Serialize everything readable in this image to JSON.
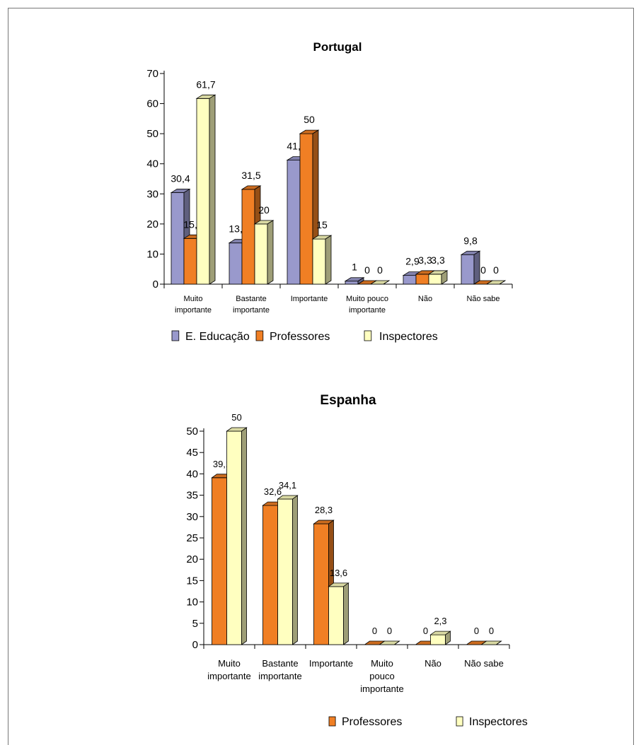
{
  "chart_data": [
    {
      "type": "bar",
      "title": "Portugal",
      "categories": [
        [
          "Muito",
          "importante"
        ],
        [
          "Bastante",
          "importante"
        ],
        [
          "Importante"
        ],
        [
          "Muito pouco",
          "importante"
        ],
        [
          "Não"
        ],
        [
          "Não sabe"
        ]
      ],
      "ylim": [
        0,
        70
      ],
      "yticks": [
        0,
        10,
        20,
        30,
        40,
        50,
        60,
        70
      ],
      "series": [
        {
          "name": "E. Educação",
          "color": "#9999cc",
          "values": [
            30.4,
            13.7,
            41.2,
            1,
            2.9,
            9.8
          ],
          "labels": [
            "30,4",
            "13,7",
            "41,2",
            "1",
            "2,9",
            "9,8"
          ]
        },
        {
          "name": "Professores",
          "color": "#f07f24",
          "values": [
            15.2,
            31.5,
            50,
            0,
            3.3,
            0
          ],
          "labels": [
            "15,2",
            "31,5",
            "50",
            "0",
            "3,3",
            "0"
          ]
        },
        {
          "name": "Inspectores",
          "color": "#ffffc0",
          "values": [
            61.7,
            20,
            15,
            0,
            3.3,
            0
          ],
          "labels": [
            "61,7",
            "20",
            "15",
            "0",
            "3,3",
            "0"
          ]
        }
      ],
      "legend": "bottom",
      "grid": false
    },
    {
      "type": "bar",
      "title": "Espanha",
      "categories": [
        [
          "Muito",
          "importante"
        ],
        [
          "Bastante",
          "importante"
        ],
        [
          "Importante"
        ],
        [
          "Muito",
          "pouco",
          "importante"
        ],
        [
          "Não"
        ],
        [
          "Não sabe"
        ]
      ],
      "ylim": [
        0,
        50
      ],
      "yticks": [
        0,
        5,
        10,
        15,
        20,
        25,
        30,
        35,
        40,
        45,
        50
      ],
      "series": [
        {
          "name": "Professores",
          "color": "#f07f24",
          "values": [
            39.1,
            32.6,
            28.3,
            0,
            0,
            0
          ],
          "labels": [
            "39,1",
            "32,6",
            "28,3",
            "0",
            "0",
            "0"
          ]
        },
        {
          "name": "Inspectores",
          "color": "#ffffc0",
          "values": [
            50,
            34.1,
            13.6,
            0,
            2.3,
            0
          ],
          "labels": [
            "50",
            "34,1",
            "13,6",
            "0",
            "2,3",
            "0"
          ]
        }
      ],
      "legend": "bottom",
      "grid": false
    }
  ]
}
